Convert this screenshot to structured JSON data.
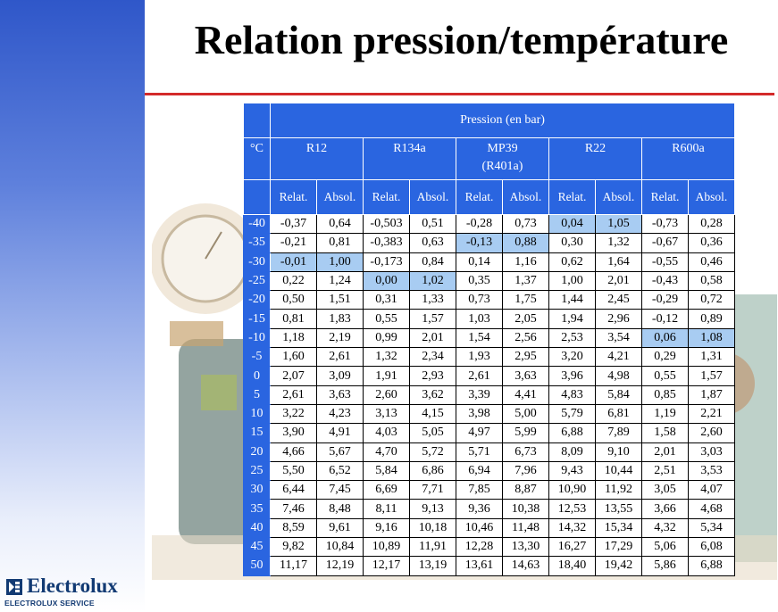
{
  "title": "Relation pression/température",
  "table": {
    "pressure_header": "Pression (en bar)",
    "unit_header": "°C",
    "refrigerants": [
      {
        "line1": "R12",
        "line2": ""
      },
      {
        "line1": "R134a",
        "line2": ""
      },
      {
        "line1": "MP39",
        "line2": "(R401a)"
      },
      {
        "line1": "R22",
        "line2": ""
      },
      {
        "line1": "R600a",
        "line2": ""
      }
    ],
    "sub_headers": [
      "Relat.",
      "Absol.",
      "Relat.",
      "Absol.",
      "Relat.",
      "Absol.",
      "Relat.",
      "Absol.",
      "Relat.",
      "Absol."
    ],
    "rows": [
      {
        "t": "-40",
        "v": [
          "-0,37",
          "0,64",
          "-0,503",
          "0,51",
          "-0,28",
          "0,73",
          "0,04",
          "1,05",
          "-0,73",
          "0,28"
        ],
        "hl": [
          6,
          7
        ]
      },
      {
        "t": "-35",
        "v": [
          "-0,21",
          "0,81",
          "-0,383",
          "0,63",
          "-0,13",
          "0,88",
          "0,30",
          "1,32",
          "-0,67",
          "0,36"
        ],
        "hl": [
          4,
          5
        ]
      },
      {
        "t": "-30",
        "v": [
          "-0,01",
          "1,00",
          "-0,173",
          "0,84",
          "0,14",
          "1,16",
          "0,62",
          "1,64",
          "-0,55",
          "0,46"
        ],
        "hl": [
          0,
          1
        ]
      },
      {
        "t": "-25",
        "v": [
          "0,22",
          "1,24",
          "0,00",
          "1,02",
          "0,35",
          "1,37",
          "1,00",
          "2,01",
          "-0,43",
          "0,58"
        ],
        "hl": [
          2,
          3
        ]
      },
      {
        "t": "-20",
        "v": [
          "0,50",
          "1,51",
          "0,31",
          "1,33",
          "0,73",
          "1,75",
          "1,44",
          "2,45",
          "-0,29",
          "0,72"
        ],
        "hl": []
      },
      {
        "t": "-15",
        "v": [
          "0,81",
          "1,83",
          "0,55",
          "1,57",
          "1,03",
          "2,05",
          "1,94",
          "2,96",
          "-0,12",
          "0,89"
        ],
        "hl": []
      },
      {
        "t": "-10",
        "v": [
          "1,18",
          "2,19",
          "0,99",
          "2,01",
          "1,54",
          "2,56",
          "2,53",
          "3,54",
          "0,06",
          "1,08"
        ],
        "hl": [
          8,
          9
        ]
      },
      {
        "t": "-5",
        "v": [
          "1,60",
          "2,61",
          "1,32",
          "2,34",
          "1,93",
          "2,95",
          "3,20",
          "4,21",
          "0,29",
          "1,31"
        ],
        "hl": []
      },
      {
        "t": "0",
        "v": [
          "2,07",
          "3,09",
          "1,91",
          "2,93",
          "2,61",
          "3,63",
          "3,96",
          "4,98",
          "0,55",
          "1,57"
        ],
        "hl": []
      },
      {
        "t": "5",
        "v": [
          "2,61",
          "3,63",
          "2,60",
          "3,62",
          "3,39",
          "4,41",
          "4,83",
          "5,84",
          "0,85",
          "1,87"
        ],
        "hl": []
      },
      {
        "t": "10",
        "v": [
          "3,22",
          "4,23",
          "3,13",
          "4,15",
          "3,98",
          "5,00",
          "5,79",
          "6,81",
          "1,19",
          "2,21"
        ],
        "hl": []
      },
      {
        "t": "15",
        "v": [
          "3,90",
          "4,91",
          "4,03",
          "5,05",
          "4,97",
          "5,99",
          "6,88",
          "7,89",
          "1,58",
          "2,60"
        ],
        "hl": []
      },
      {
        "t": "20",
        "v": [
          "4,66",
          "5,67",
          "4,70",
          "5,72",
          "5,71",
          "6,73",
          "8,09",
          "9,10",
          "2,01",
          "3,03"
        ],
        "hl": []
      },
      {
        "t": "25",
        "v": [
          "5,50",
          "6,52",
          "5,84",
          "6,86",
          "6,94",
          "7,96",
          "9,43",
          "10,44",
          "2,51",
          "3,53"
        ],
        "hl": []
      },
      {
        "t": "30",
        "v": [
          "6,44",
          "7,45",
          "6,69",
          "7,71",
          "7,85",
          "8,87",
          "10,90",
          "11,92",
          "3,05",
          "4,07"
        ],
        "hl": []
      },
      {
        "t": "35",
        "v": [
          "7,46",
          "8,48",
          "8,11",
          "9,13",
          "9,36",
          "10,38",
          "12,53",
          "13,55",
          "3,66",
          "4,68"
        ],
        "hl": []
      },
      {
        "t": "40",
        "v": [
          "8,59",
          "9,61",
          "9,16",
          "10,18",
          "10,46",
          "11,48",
          "14,32",
          "15,34",
          "4,32",
          "5,34"
        ],
        "hl": []
      },
      {
        "t": "45",
        "v": [
          "9,82",
          "10,84",
          "10,89",
          "11,91",
          "12,28",
          "13,30",
          "16,27",
          "17,29",
          "5,06",
          "6,08"
        ],
        "hl": []
      },
      {
        "t": "50",
        "v": [
          "11,17",
          "12,19",
          "12,17",
          "13,19",
          "13,61",
          "14,63",
          "18,40",
          "19,42",
          "5,86",
          "6,88"
        ],
        "hl": []
      }
    ]
  },
  "logo": {
    "name": "Electrolux",
    "subtitle": "ELECTROLUX SERVICE",
    "icon": "electrolux-logo-icon"
  },
  "colors": {
    "header_blue": "#2a65e0",
    "highlight": "#a8ccf2",
    "title_rule": "#d32a2a",
    "logo_blue": "#123a73"
  }
}
